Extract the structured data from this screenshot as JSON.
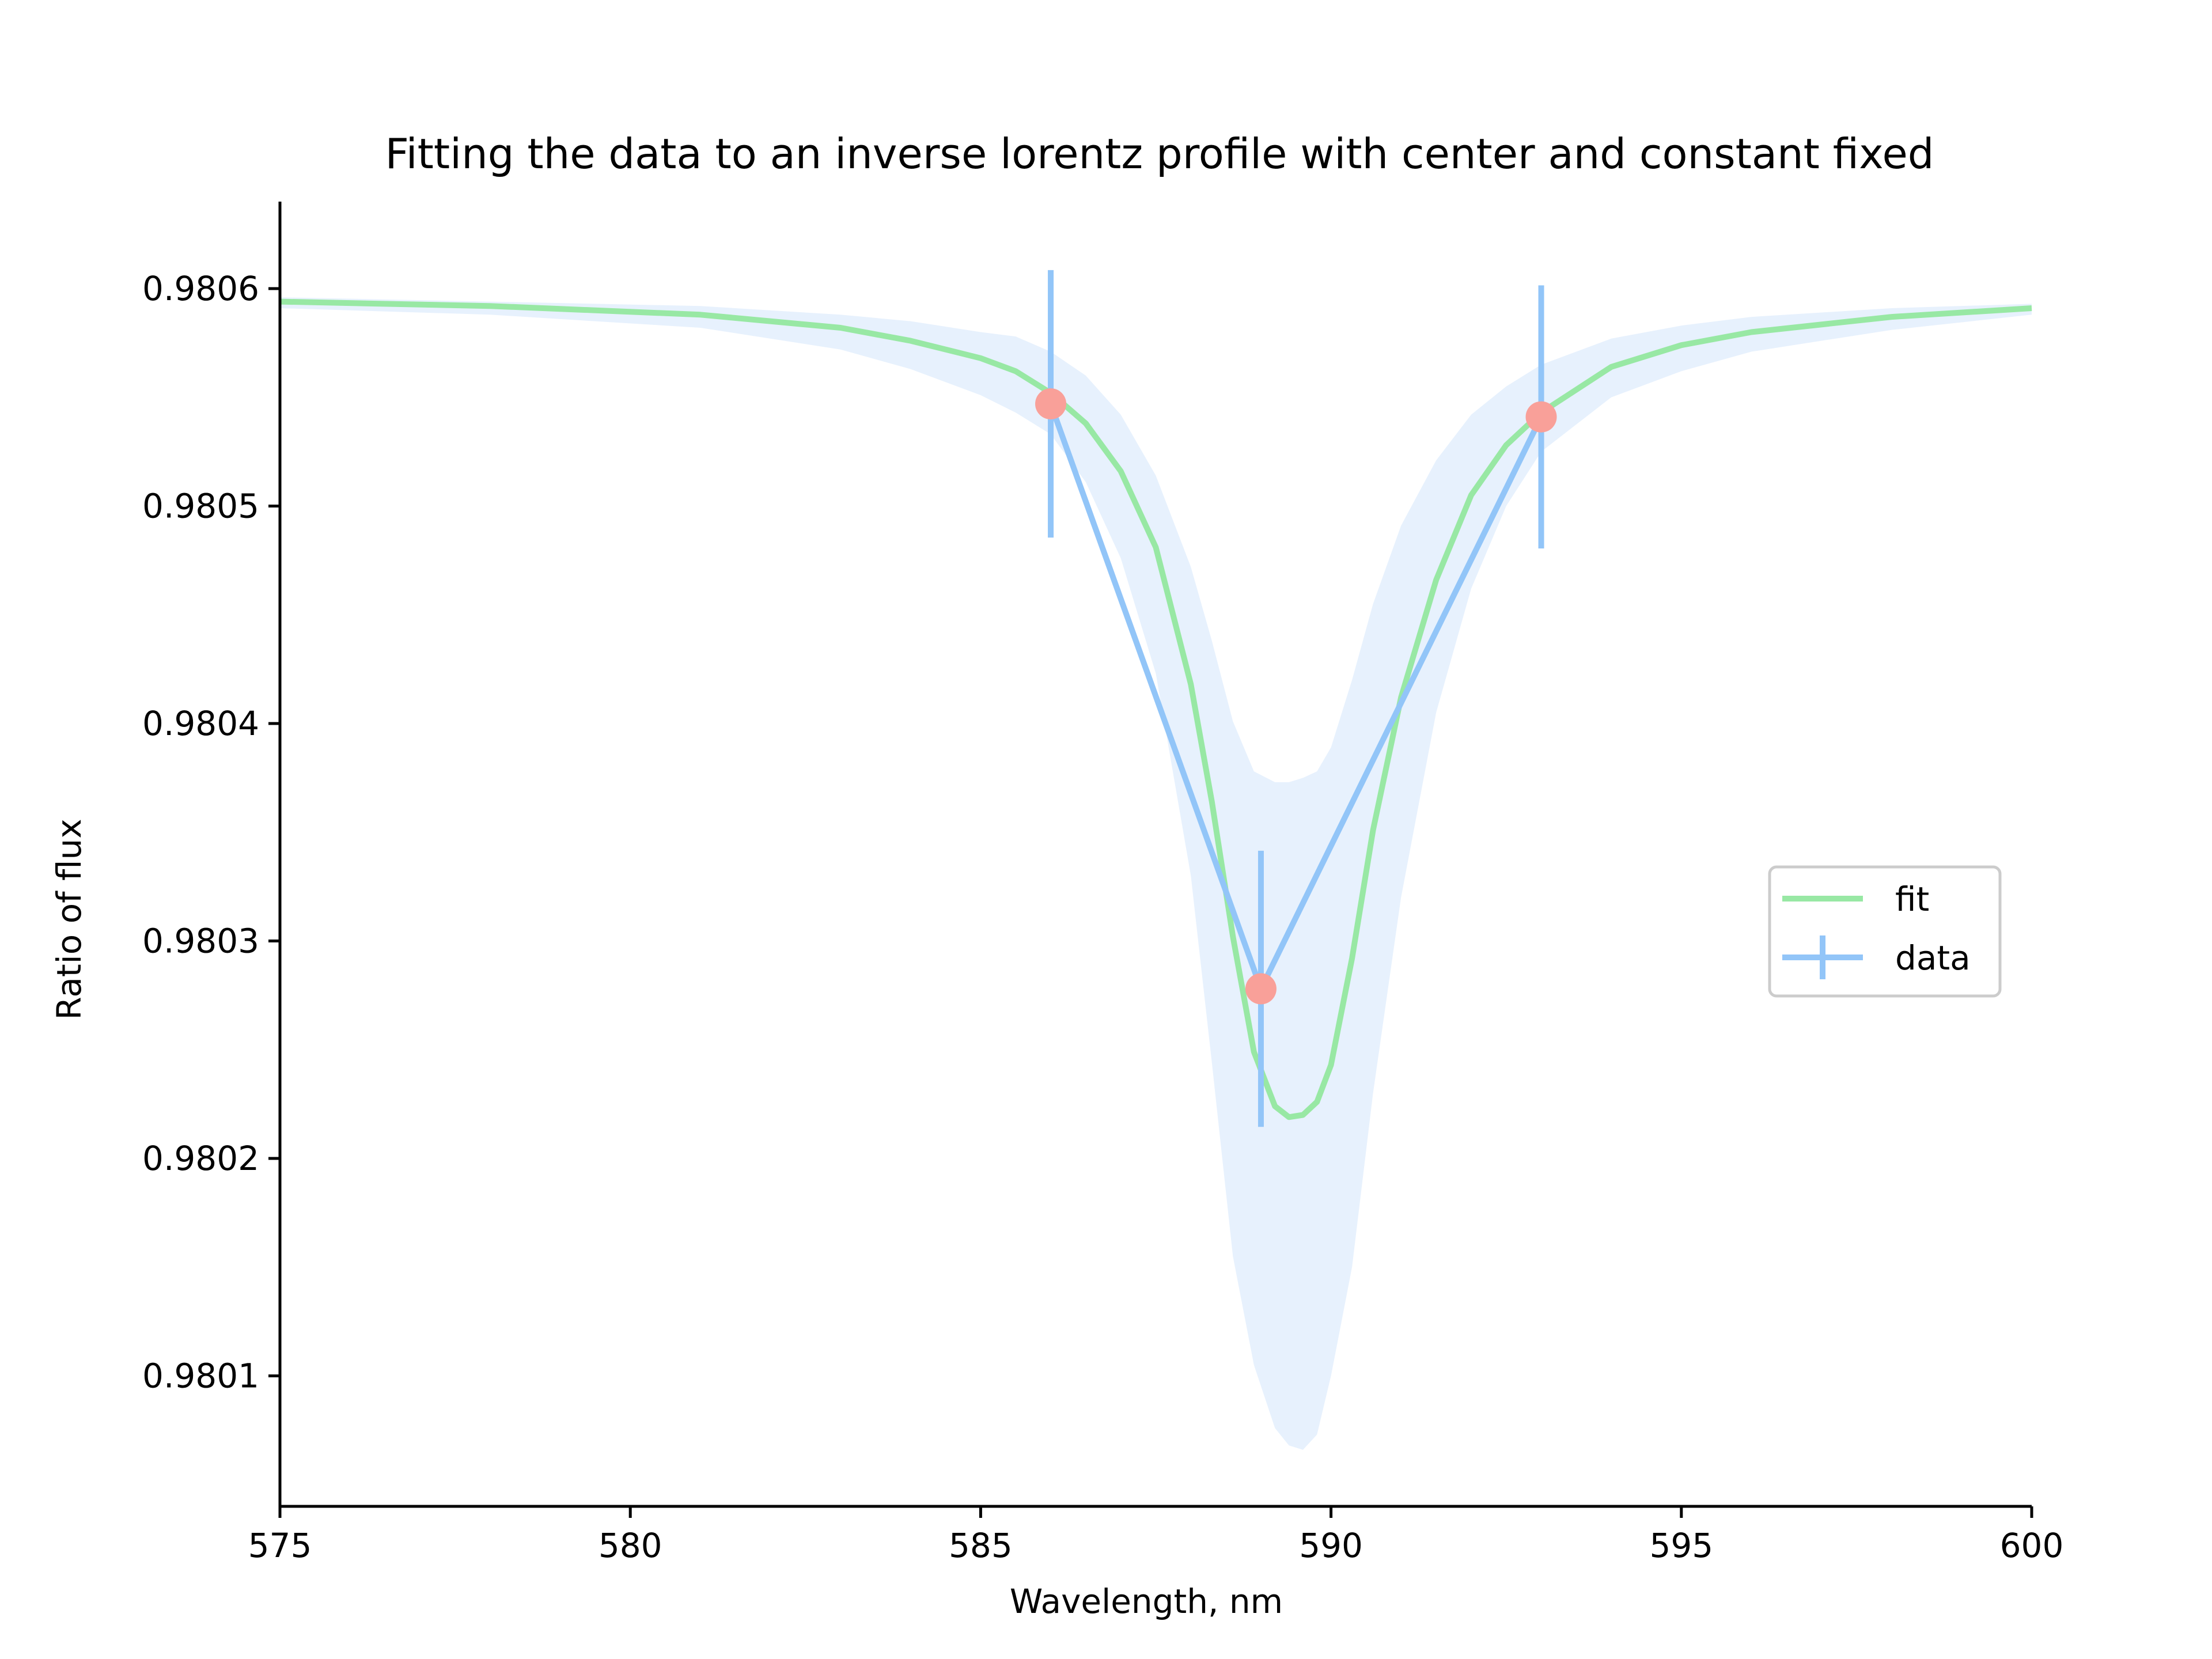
{
  "chart_data": {
    "type": "line",
    "title": "Fitting the data to an inverse lorentz profile with center and constant fixed",
    "xlabel": "Wavelength, nm",
    "ylabel": "Ratio of flux",
    "xlim": [
      575,
      600
    ],
    "ylim": [
      0.98004,
      0.98064
    ],
    "xticks": [
      575,
      580,
      585,
      590,
      595,
      600
    ],
    "xtick_labels": [
      "575",
      "580",
      "585",
      "590",
      "595",
      "600"
    ],
    "yticks": [
      0.9801,
      0.9802,
      0.9803,
      0.9804,
      0.9805,
      0.9806
    ],
    "ytick_labels": [
      "0.9801",
      "0.9802",
      "0.9803",
      "0.9804",
      "0.9805",
      "0.9806"
    ],
    "grid": false,
    "legend_position": "center-right",
    "series": [
      {
        "name": "fit",
        "kind": "line",
        "color": "#98e8a4",
        "model": "inverse-lorentz",
        "x": [
          575,
          578,
          581,
          583,
          584,
          585,
          585.5,
          586,
          586.5,
          587,
          587.5,
          588,
          588.3,
          588.6,
          588.9,
          589.2,
          589.4,
          589.6,
          589.8,
          590.0,
          590.3,
          590.6,
          591,
          591.5,
          592,
          592.5,
          593,
          594,
          595,
          596,
          598,
          600
        ],
        "y": [
          0.980594,
          0.980592,
          0.980588,
          0.980582,
          0.980576,
          0.980568,
          0.980562,
          0.980552,
          0.980538,
          0.980516,
          0.980481,
          0.980418,
          0.980364,
          0.980302,
          0.980249,
          0.980224,
          0.980219,
          0.98022,
          0.980226,
          0.980243,
          0.980292,
          0.980351,
          0.980412,
          0.980466,
          0.980505,
          0.980528,
          0.980543,
          0.980564,
          0.980574,
          0.98058,
          0.980587,
          0.980591
        ]
      },
      {
        "name": "data",
        "kind": "errorbar",
        "color": "#92c5f8",
        "marker_color": "#f9a099",
        "x": [
          586,
          589,
          593
        ],
        "y": [
          0.980547,
          0.980278,
          0.980541
        ],
        "yerr": [
          6.15e-05,
          6.35e-05,
          6.05e-05
        ]
      }
    ],
    "band": {
      "color": "#e7f1fd",
      "x": [
        575,
        578,
        581,
        583,
        584,
        585,
        585.5,
        586,
        586.5,
        587,
        587.5,
        588,
        588.3,
        588.6,
        588.9,
        589.2,
        589.4,
        589.6,
        589.8,
        590.0,
        590.3,
        590.6,
        591,
        591.5,
        592,
        592.5,
        593,
        594,
        595,
        596,
        598,
        600
      ],
      "upper": [
        0.980596,
        0.980594,
        0.980592,
        0.980588,
        0.980585,
        0.98058,
        0.980578,
        0.980571,
        0.98056,
        0.980542,
        0.980514,
        0.980472,
        0.980438,
        0.980401,
        0.980378,
        0.980373,
        0.980373,
        0.980375,
        0.980378,
        0.980389,
        0.98042,
        0.980455,
        0.980491,
        0.980521,
        0.980542,
        0.980555,
        0.980565,
        0.980577,
        0.980583,
        0.980587,
        0.980591,
        0.980593
      ],
      "lower": [
        0.980591,
        0.980588,
        0.980582,
        0.980572,
        0.980563,
        0.980551,
        0.980543,
        0.980533,
        0.980511,
        0.980476,
        0.980423,
        0.98033,
        0.980244,
        0.980155,
        0.980105,
        0.980076,
        0.980068,
        0.980066,
        0.980073,
        0.9801,
        0.98015,
        0.98023,
        0.98032,
        0.980405,
        0.980462,
        0.9805,
        0.980525,
        0.98055,
        0.980562,
        0.980571,
        0.980581,
        0.980588
      ]
    }
  }
}
